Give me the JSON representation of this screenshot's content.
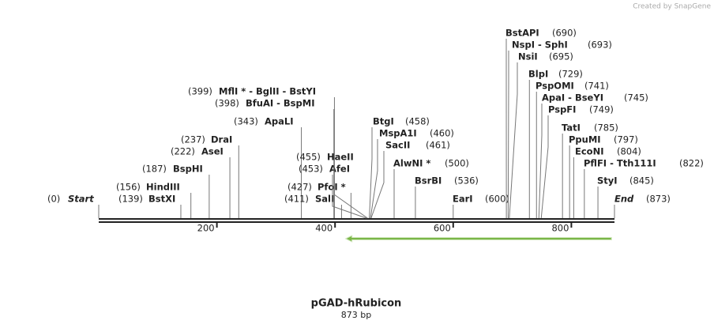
{
  "credit": "Created by SnapGene",
  "title": "pGAD-hRubicon",
  "length": {
    "value": 873,
    "label": "873 bp"
  },
  "ruler_ticks": [
    200,
    400,
    600,
    800
  ],
  "feature": {
    "start": 418,
    "end": 868,
    "direction": "reverse",
    "color": "#7ab648"
  },
  "sites": [
    {
      "name": "Start",
      "position": {
        "value": 0,
        "label": "(0)"
      }
    },
    {
      "name": "BstXI",
      "position": {
        "value": 139,
        "label": "(139)"
      }
    },
    {
      "name": "HindIII",
      "position": {
        "value": 156,
        "label": "(156)"
      }
    },
    {
      "name": "BspHI",
      "position": {
        "value": 187,
        "label": "(187)"
      }
    },
    {
      "name": "AseI",
      "position": {
        "value": 222,
        "label": "(222)"
      }
    },
    {
      "name": "DraI",
      "position": {
        "value": 237,
        "label": "(237)"
      }
    },
    {
      "name": "ApaLI",
      "position": {
        "value": 343,
        "label": "(343)"
      }
    },
    {
      "name": "BfuAI  -  BspMI",
      "position": {
        "value": 398,
        "label": "(398)"
      }
    },
    {
      "name": "MflI *  -  BglII  -  BstYI",
      "position": {
        "value": 399,
        "label": "(399)"
      }
    },
    {
      "name": "SalI",
      "position": {
        "value": 411,
        "label": "(411)"
      }
    },
    {
      "name": "PfoI *",
      "position": {
        "value": 427,
        "label": "(427)"
      }
    },
    {
      "name": "AfeI",
      "position": {
        "value": 453,
        "label": "(453)"
      }
    },
    {
      "name": "HaeII",
      "position": {
        "value": 455,
        "label": "(455)"
      }
    },
    {
      "name": "BtgI",
      "position": {
        "value": 458,
        "label": "(458)"
      }
    },
    {
      "name": "MspA1I",
      "position": {
        "value": 460,
        "label": "(460)"
      }
    },
    {
      "name": "SacII",
      "position": {
        "value": 461,
        "label": "(461)"
      }
    },
    {
      "name": "AlwNI *",
      "position": {
        "value": 500,
        "label": "(500)"
      }
    },
    {
      "name": "BsrBI",
      "position": {
        "value": 536,
        "label": "(536)"
      }
    },
    {
      "name": "EarI",
      "position": {
        "value": 600,
        "label": "(600)"
      }
    },
    {
      "name": "BstAPI",
      "position": {
        "value": 690,
        "label": "(690)"
      }
    },
    {
      "name": "NspI  -  SphI",
      "position": {
        "value": 693,
        "label": "(693)"
      }
    },
    {
      "name": "NsiI",
      "position": {
        "value": 695,
        "label": "(695)"
      }
    },
    {
      "name": "BlpI",
      "position": {
        "value": 729,
        "label": "(729)"
      }
    },
    {
      "name": "PspOMI",
      "position": {
        "value": 741,
        "label": "(741)"
      }
    },
    {
      "name": "ApaI  -  BseYI",
      "position": {
        "value": 745,
        "label": "(745)"
      }
    },
    {
      "name": "PspFI",
      "position": {
        "value": 749,
        "label": "(749)"
      }
    },
    {
      "name": "TatI",
      "position": {
        "value": 785,
        "label": "(785)"
      }
    },
    {
      "name": "PpuMI",
      "position": {
        "value": 797,
        "label": "(797)"
      }
    },
    {
      "name": "EcoNI",
      "position": {
        "value": 804,
        "label": "(804)"
      }
    },
    {
      "name": "PflFI  -  Tth111I",
      "position": {
        "value": 822,
        "label": "(822)"
      }
    },
    {
      "name": "StyI",
      "position": {
        "value": 845,
        "label": "(845)"
      }
    },
    {
      "name": "End",
      "position": {
        "value": 873,
        "label": "(873)"
      }
    }
  ]
}
